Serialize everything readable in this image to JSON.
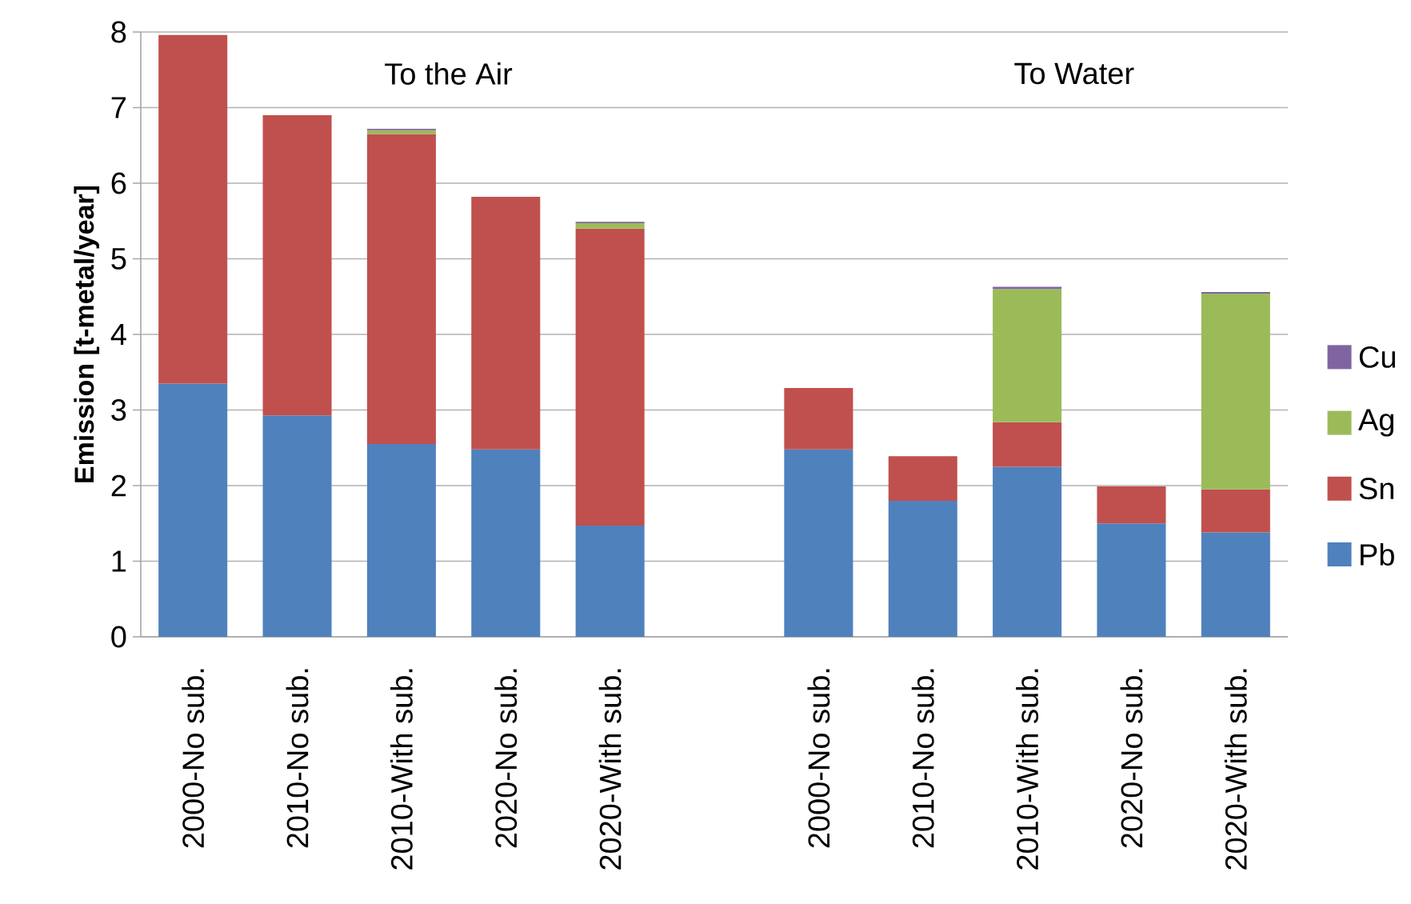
{
  "chart_data": {
    "type": "bar",
    "stacked": true,
    "ylabel": "Emission [t-metal/year]",
    "categories": [
      "2000-No sub.",
      "2010-No sub.",
      "2010-With sub.",
      "2020-No sub.",
      "2020-With sub.",
      null,
      "2000-No sub.",
      "2010-No sub.",
      "2010-With sub.",
      "2020-No sub.",
      "2020-With sub."
    ],
    "series": [
      {
        "name": "Pb",
        "color": "#4f81bd",
        "values": [
          3.35,
          2.93,
          2.55,
          2.48,
          1.47,
          null,
          2.48,
          1.8,
          2.25,
          1.5,
          1.38
        ]
      },
      {
        "name": "Sn",
        "color": "#c0504d",
        "values": [
          4.61,
          3.97,
          4.1,
          3.34,
          3.93,
          null,
          0.81,
          0.59,
          0.59,
          0.49,
          0.57
        ]
      },
      {
        "name": "Ag",
        "color": "#9bbb59",
        "values": [
          null,
          null,
          0.05,
          null,
          0.07,
          null,
          null,
          null,
          1.76,
          null,
          2.59
        ]
      },
      {
        "name": "Cu",
        "color": "#8064a2",
        "values": [
          null,
          null,
          0.02,
          null,
          0.02,
          null,
          null,
          null,
          0.03,
          null,
          0.02
        ]
      }
    ],
    "ylim": [
      0,
      8
    ],
    "yticks": [
      0,
      1,
      2,
      3,
      4,
      5,
      6,
      7,
      8
    ],
    "grid": "y",
    "legend": "right",
    "annotations": [
      "To the Air",
      "To Water"
    ]
  }
}
